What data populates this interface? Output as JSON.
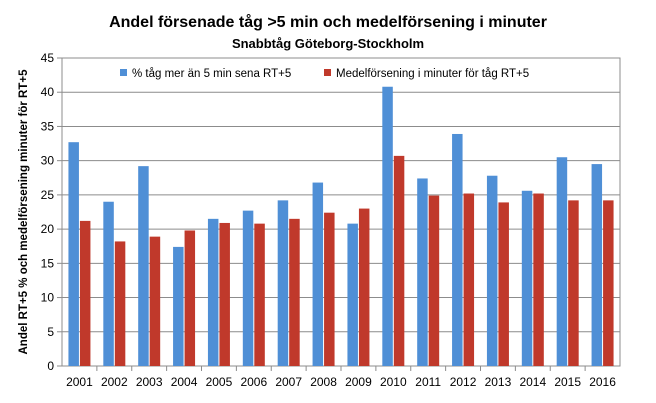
{
  "chart_data": {
    "type": "bar",
    "title": "Andel försenade tåg >5 min och medelförsening i minuter",
    "subtitle": "Snabbtåg Göteborg-Stockholm",
    "xlabel": "",
    "ylabel": "Andel RT+5 % och medelförsening minuter för RT+5",
    "ylim": [
      0,
      45
    ],
    "yticks": [
      0,
      5,
      10,
      15,
      20,
      25,
      30,
      35,
      40,
      45
    ],
    "grid": true,
    "legend_position": "top",
    "categories": [
      "2001",
      "2002",
      "2003",
      "2004",
      "2005",
      "2006",
      "2007",
      "2008",
      "2009",
      "2010",
      "2011",
      "2012",
      "2013",
      "2014",
      "2015",
      "2016"
    ],
    "series": [
      {
        "name": "% tåg mer än 5 min sena RT+5",
        "color": "#4f8fd6",
        "values": [
          32.7,
          24.0,
          29.2,
          17.4,
          21.5,
          22.7,
          24.2,
          26.8,
          20.8,
          40.8,
          27.4,
          33.9,
          27.8,
          25.6,
          30.5,
          29.5
        ]
      },
      {
        "name": "Medelförsening i minuter för tåg RT+5",
        "color": "#c0392b",
        "values": [
          21.2,
          18.2,
          18.9,
          19.8,
          20.9,
          20.8,
          21.5,
          22.4,
          23.0,
          30.7,
          24.9,
          25.2,
          23.9,
          25.2,
          24.2,
          24.2
        ]
      }
    ]
  }
}
